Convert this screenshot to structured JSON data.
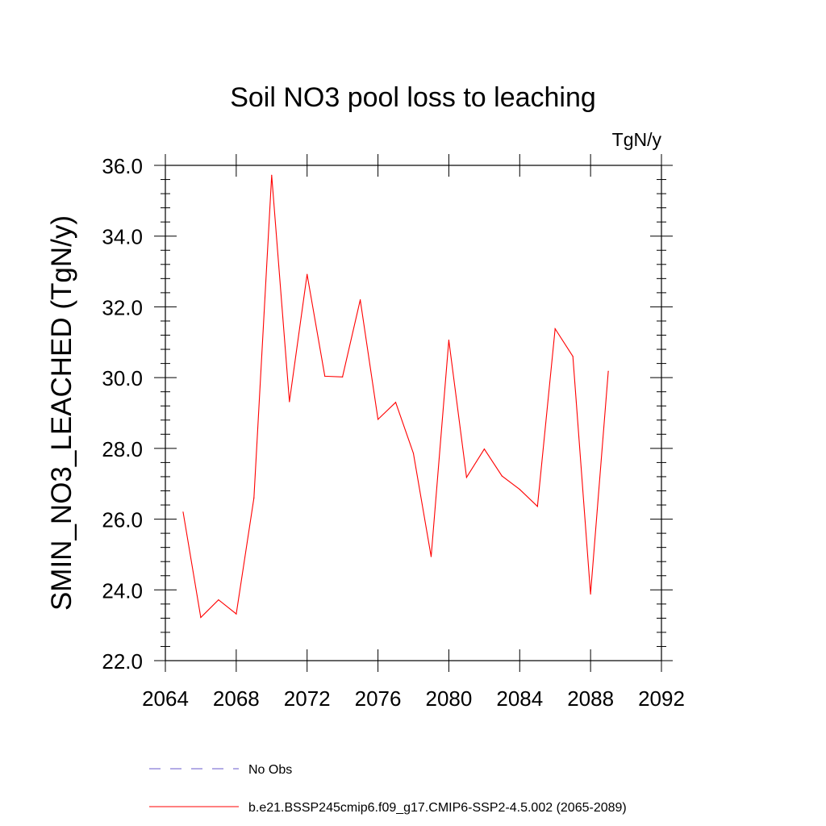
{
  "chart_data": {
    "type": "line",
    "title": "Soil NO3 pool loss to leaching",
    "units_label": "TgN/y",
    "ylabel": "SMIN_NO3_LEACHED  (TgN/y)",
    "xlabel": "",
    "xlim": [
      2064,
      2092
    ],
    "ylim": [
      22.0,
      36.0
    ],
    "x_ticks": [
      2064,
      2068,
      2072,
      2076,
      2080,
      2084,
      2088,
      2092
    ],
    "x_tick_labels": [
      "2064",
      "2068",
      "2072",
      "2076",
      "2080",
      "2084",
      "2088",
      "2092"
    ],
    "y_ticks": [
      22.0,
      24.0,
      26.0,
      28.0,
      30.0,
      32.0,
      34.0,
      36.0
    ],
    "y_tick_labels": [
      "22.0",
      "24.0",
      "26.0",
      "28.0",
      "30.0",
      "32.0",
      "34.0",
      "36.0"
    ],
    "grid": false,
    "legend_position": "bottom",
    "series": [
      {
        "name": "No Obs",
        "color": "#6a5acd",
        "dash": "dashed",
        "x": [],
        "values": []
      },
      {
        "name": "b.e21.BSSP245cmip6.f09_g17.CMIP6-SSP2-4.5.002 (2065-2089)",
        "color": "#ff0000",
        "dash": "solid",
        "x": [
          2065,
          2066,
          2067,
          2068,
          2069,
          2070,
          2071,
          2072,
          2073,
          2074,
          2075,
          2076,
          2077,
          2078,
          2079,
          2080,
          2081,
          2082,
          2083,
          2084,
          2085,
          2086,
          2087,
          2088,
          2089
        ],
        "values": [
          26.2,
          23.22,
          23.72,
          23.32,
          26.6,
          35.72,
          29.32,
          32.92,
          30.04,
          30.02,
          32.2,
          28.82,
          29.3,
          27.86,
          24.94,
          31.06,
          27.18,
          27.98,
          27.22,
          26.84,
          26.36,
          31.38,
          30.6,
          23.88,
          30.18
        ]
      }
    ]
  }
}
